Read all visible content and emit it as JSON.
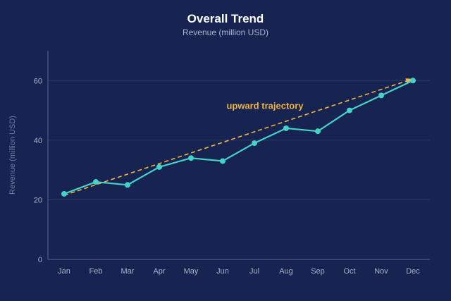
{
  "chart_data": {
    "type": "line",
    "title": "Overall Trend",
    "subtitle": "Revenue (million USD)",
    "xlabel": "",
    "ylabel": "Revenue (million USD)",
    "categories": [
      "Jan",
      "Feb",
      "Mar",
      "Apr",
      "May",
      "Jun",
      "Jul",
      "Aug",
      "Sep",
      "Oct",
      "Nov",
      "Dec"
    ],
    "series": [
      {
        "values": [
          22,
          26,
          25,
          31,
          34,
          33,
          39,
          44,
          43,
          50,
          55,
          60
        ]
      }
    ],
    "ylim": [
      0,
      70
    ],
    "yticks": [
      0,
      20,
      40,
      60
    ],
    "grid": true,
    "trendline": {
      "from": [
        "Jan",
        21.5
      ],
      "to": [
        "Dec",
        60.5
      ],
      "style": "dashed"
    },
    "annotation": {
      "text": "upward trajectory",
      "at": [
        "Jul",
        50.5
      ]
    },
    "colors": {
      "background": "#172350",
      "series": "#45d2c8",
      "trend": "#f0b441",
      "grid": "#2d3a6a",
      "axis": "#5a6696"
    }
  }
}
